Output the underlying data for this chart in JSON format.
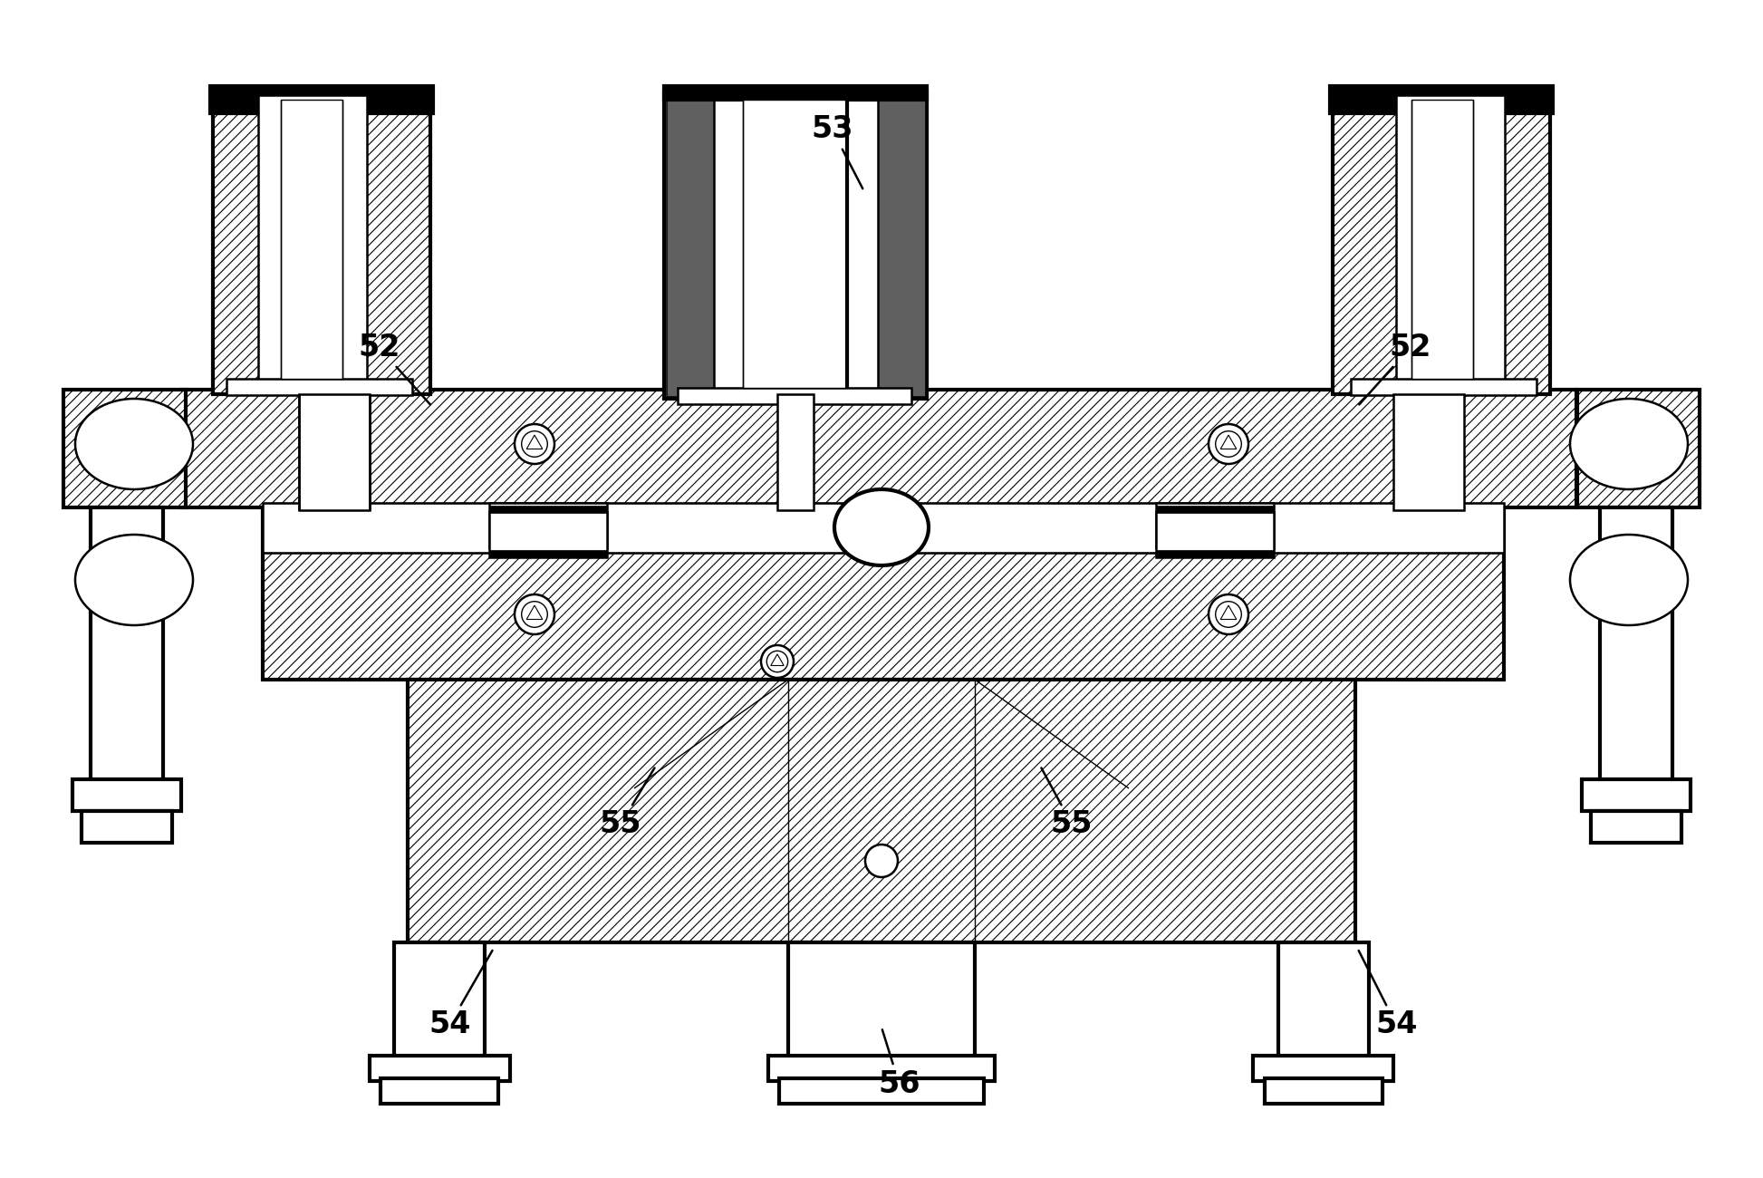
{
  "bg_color": "#ffffff",
  "lc": "#000000",
  "fig_width": 19.46,
  "fig_height": 13.0,
  "lw_thick": 3.0,
  "lw_med": 1.8,
  "lw_thin": 1.0,
  "hatch_lw": 0.8,
  "label_fontsize": 24,
  "labels": {
    "52L": {
      "text": "52",
      "xt": 0.215,
      "yt": 0.295,
      "xa": 0.245,
      "ya": 0.345
    },
    "52R": {
      "text": "52",
      "xt": 0.8,
      "yt": 0.295,
      "xa": 0.77,
      "ya": 0.345
    },
    "53": {
      "text": "53",
      "xt": 0.472,
      "yt": 0.11,
      "xa": 0.49,
      "ya": 0.162
    },
    "54L": {
      "text": "54",
      "xt": 0.255,
      "yt": 0.87,
      "xa": 0.28,
      "ya": 0.805
    },
    "54R": {
      "text": "54",
      "xt": 0.792,
      "yt": 0.87,
      "xa": 0.77,
      "ya": 0.805
    },
    "55L": {
      "text": "55",
      "xt": 0.352,
      "yt": 0.7,
      "xa": 0.372,
      "ya": 0.65
    },
    "55R": {
      "text": "55",
      "xt": 0.608,
      "yt": 0.7,
      "xa": 0.59,
      "ya": 0.65
    },
    "56": {
      "text": "56",
      "xt": 0.51,
      "yt": 0.92,
      "xa": 0.5,
      "ya": 0.872
    }
  }
}
